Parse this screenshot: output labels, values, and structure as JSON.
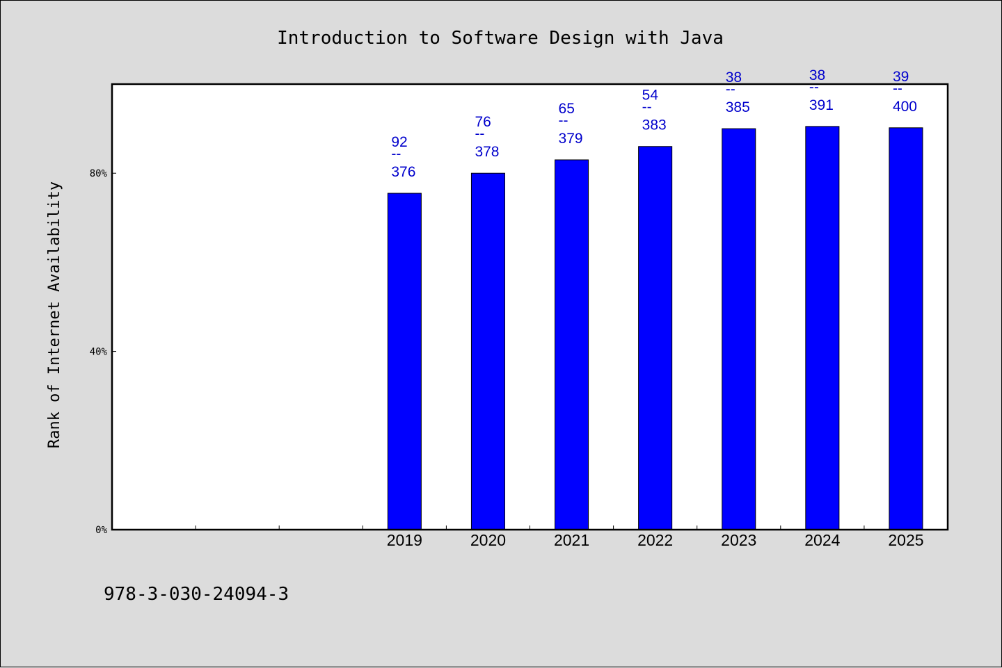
{
  "chart_data": {
    "type": "bar",
    "title": "Introduction to Software Design with Java",
    "ylabel": "Rank of Internet Availability",
    "xlabel": "",
    "ylim": [
      0,
      100
    ],
    "yticks": [
      {
        "value": 0,
        "label": "0%"
      },
      {
        "value": 40,
        "label": "40%"
      },
      {
        "value": 80,
        "label": "80%"
      }
    ],
    "categories": [
      "",
      "",
      "",
      "2019",
      "2020",
      "2021",
      "2022",
      "2023",
      "2024",
      "2025"
    ],
    "values": [
      null,
      null,
      null,
      75.5,
      80,
      83,
      86,
      90,
      90.5,
      90.2
    ],
    "data_labels": [
      null,
      null,
      null,
      {
        "top": "92",
        "sep": "--",
        "bottom": "376"
      },
      {
        "top": "76",
        "sep": "--",
        "bottom": "378"
      },
      {
        "top": "65",
        "sep": "--",
        "bottom": "379"
      },
      {
        "top": "54",
        "sep": "--",
        "bottom": "383"
      },
      {
        "top": "38",
        "sep": "--",
        "bottom": "385"
      },
      {
        "top": "38",
        "sep": "--",
        "bottom": "391"
      },
      {
        "top": "39",
        "sep": "--",
        "bottom": "400"
      }
    ],
    "bar_color": "#0000ff",
    "label_color": "#0000cc",
    "grid": false,
    "legend": "none"
  },
  "footer": {
    "isbn": "978-3-030-24094-3"
  }
}
